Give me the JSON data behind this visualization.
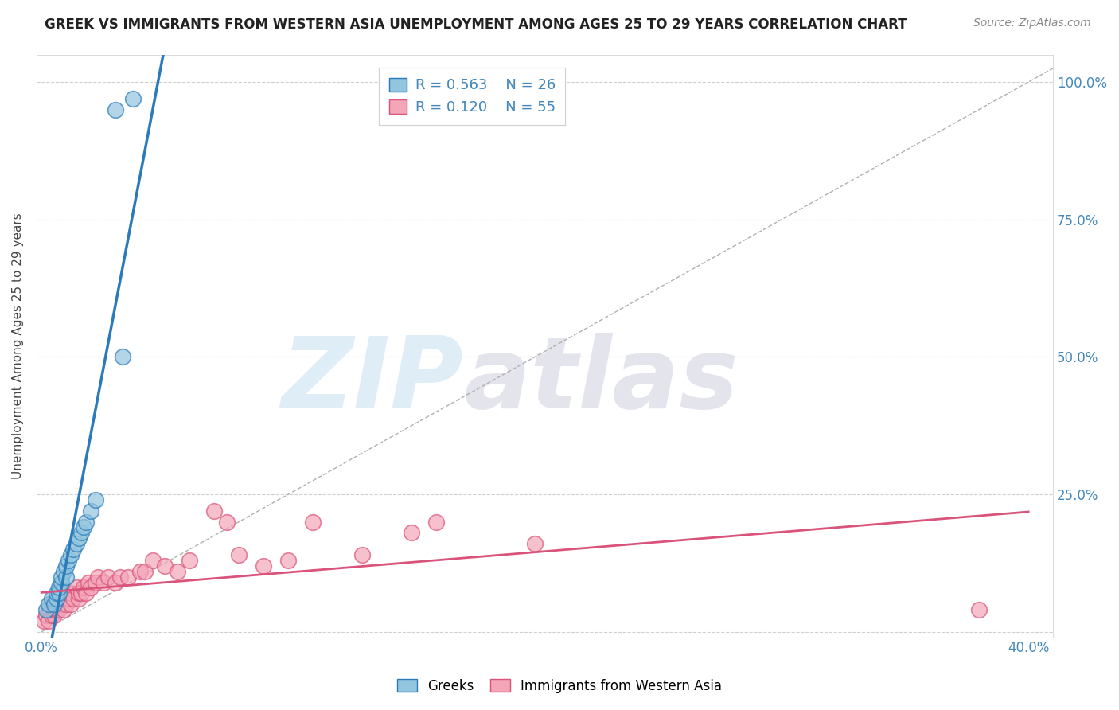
{
  "title": "GREEK VS IMMIGRANTS FROM WESTERN ASIA UNEMPLOYMENT AMONG AGES 25 TO 29 YEARS CORRELATION CHART",
  "source": "Source: ZipAtlas.com",
  "ylabel": "Unemployment Among Ages 25 to 29 years",
  "xlabel_ticks": [
    "0.0%",
    "",
    "",
    "",
    "40.0%"
  ],
  "xlabel_vals": [
    0.0,
    0.1,
    0.2,
    0.3,
    0.4
  ],
  "ylabel_ticks_right": [
    "",
    "25.0%",
    "50.0%",
    "75.0%",
    "100.0%"
  ],
  "ylabel_vals": [
    0.0,
    0.25,
    0.5,
    0.75,
    1.0
  ],
  "xlim": [
    -0.002,
    0.41
  ],
  "ylim": [
    -0.01,
    1.05
  ],
  "blue_color": "#92c5de",
  "pink_color": "#f4a6b8",
  "blue_line_color": "#2b7bba",
  "pink_line_color": "#d9537a",
  "legend_label_blue": "Greeks",
  "legend_label_pink": "Immigrants from Western Asia",
  "watermark_zip": "ZIP",
  "watermark_atlas": "atlas",
  "greek_x": [
    0.002,
    0.003,
    0.004,
    0.005,
    0.006,
    0.006,
    0.007,
    0.007,
    0.008,
    0.008,
    0.009,
    0.01,
    0.01,
    0.011,
    0.012,
    0.013,
    0.014,
    0.015,
    0.016,
    0.017,
    0.018,
    0.02,
    0.022,
    0.03,
    0.033,
    0.037
  ],
  "greek_y": [
    0.04,
    0.05,
    0.06,
    0.05,
    0.06,
    0.07,
    0.07,
    0.08,
    0.09,
    0.1,
    0.11,
    0.1,
    0.12,
    0.13,
    0.14,
    0.15,
    0.16,
    0.17,
    0.18,
    0.19,
    0.2,
    0.22,
    0.24,
    0.95,
    0.5,
    0.97
  ],
  "immigrant_x": [
    0.001,
    0.002,
    0.003,
    0.003,
    0.004,
    0.004,
    0.005,
    0.005,
    0.005,
    0.006,
    0.006,
    0.007,
    0.007,
    0.008,
    0.008,
    0.009,
    0.009,
    0.01,
    0.01,
    0.011,
    0.012,
    0.012,
    0.013,
    0.014,
    0.015,
    0.015,
    0.016,
    0.017,
    0.018,
    0.019,
    0.02,
    0.022,
    0.023,
    0.025,
    0.027,
    0.03,
    0.032,
    0.035,
    0.04,
    0.042,
    0.045,
    0.05,
    0.055,
    0.06,
    0.07,
    0.075,
    0.08,
    0.09,
    0.1,
    0.11,
    0.13,
    0.15,
    0.16,
    0.2,
    0.38
  ],
  "immigrant_y": [
    0.02,
    0.03,
    0.02,
    0.04,
    0.03,
    0.05,
    0.03,
    0.04,
    0.05,
    0.04,
    0.06,
    0.04,
    0.05,
    0.05,
    0.06,
    0.04,
    0.06,
    0.05,
    0.07,
    0.06,
    0.05,
    0.07,
    0.06,
    0.08,
    0.06,
    0.07,
    0.07,
    0.08,
    0.07,
    0.09,
    0.08,
    0.09,
    0.1,
    0.09,
    0.1,
    0.09,
    0.1,
    0.1,
    0.11,
    0.11,
    0.13,
    0.12,
    0.11,
    0.13,
    0.22,
    0.2,
    0.14,
    0.12,
    0.13,
    0.2,
    0.14,
    0.18,
    0.2,
    0.16,
    0.04
  ],
  "background_color": "#ffffff",
  "grid_color": "#d0d0d0"
}
